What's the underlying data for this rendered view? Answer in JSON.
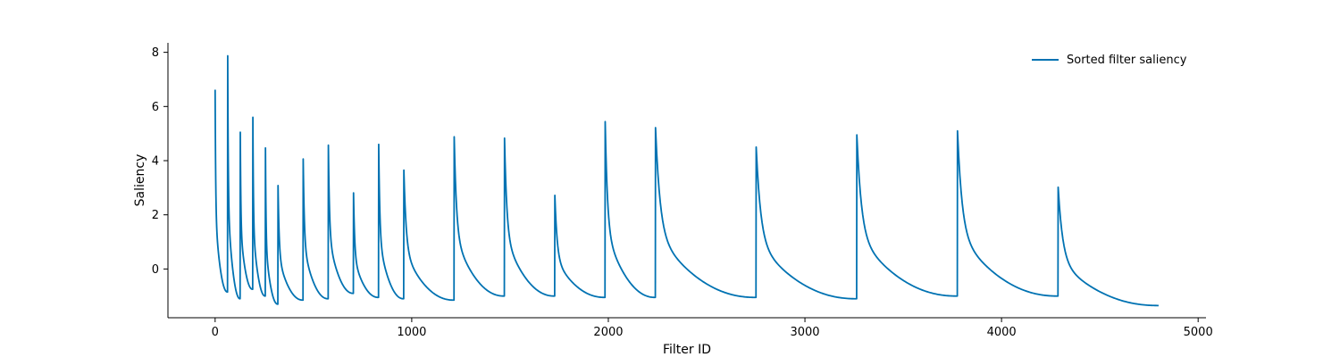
{
  "chart_data": {
    "type": "line",
    "title": "",
    "xlabel": "Filter ID",
    "ylabel": "Saliency",
    "xlim": [
      -240,
      5040
    ],
    "ylim": [
      -1.8,
      8.35
    ],
    "xticks": [
      0,
      1000,
      2000,
      3000,
      4000,
      5000
    ],
    "xtick_labels": [
      "0",
      "1000",
      "2000",
      "3000",
      "4000",
      "5000"
    ],
    "yticks": [
      0,
      2,
      4,
      6,
      8
    ],
    "ytick_labels": [
      "0",
      "2",
      "4",
      "6",
      "8"
    ],
    "grid": false,
    "legend_position": "top-right",
    "color": "#0072b2",
    "series": [
      {
        "name": "Sorted filter saliency",
        "segments": [
          {
            "start": 0,
            "end": 64,
            "peak": 6.62,
            "end_value": -0.85
          },
          {
            "start": 64,
            "end": 128,
            "peak": 7.87,
            "end_value": -1.1
          },
          {
            "start": 128,
            "end": 192,
            "peak": 5.05,
            "end_value": -0.75
          },
          {
            "start": 192,
            "end": 256,
            "peak": 5.6,
            "end_value": -1.0
          },
          {
            "start": 256,
            "end": 320,
            "peak": 4.47,
            "end_value": -1.3
          },
          {
            "start": 320,
            "end": 448,
            "peak": 3.08,
            "end_value": -1.15
          },
          {
            "start": 448,
            "end": 576,
            "peak": 4.06,
            "end_value": -1.1
          },
          {
            "start": 576,
            "end": 704,
            "peak": 4.57,
            "end_value": -0.9
          },
          {
            "start": 704,
            "end": 832,
            "peak": 2.81,
            "end_value": -1.05
          },
          {
            "start": 832,
            "end": 960,
            "peak": 4.6,
            "end_value": -1.1
          },
          {
            "start": 960,
            "end": 1216,
            "peak": 3.65,
            "end_value": -1.15
          },
          {
            "start": 1216,
            "end": 1472,
            "peak": 4.88,
            "end_value": -1.0
          },
          {
            "start": 1472,
            "end": 1728,
            "peak": 4.83,
            "end_value": -1.0
          },
          {
            "start": 1728,
            "end": 1984,
            "peak": 2.72,
            "end_value": -1.05
          },
          {
            "start": 1984,
            "end": 2240,
            "peak": 5.44,
            "end_value": -1.05
          },
          {
            "start": 2240,
            "end": 2752,
            "peak": 5.22,
            "end_value": -1.05
          },
          {
            "start": 2752,
            "end": 3264,
            "peak": 4.5,
            "end_value": -1.1
          },
          {
            "start": 3264,
            "end": 3776,
            "peak": 4.95,
            "end_value": -1.0
          },
          {
            "start": 3776,
            "end": 4288,
            "peak": 5.1,
            "end_value": -1.0
          },
          {
            "start": 4288,
            "end": 4800,
            "peak": 3.02,
            "end_value": -1.35
          }
        ]
      }
    ]
  }
}
